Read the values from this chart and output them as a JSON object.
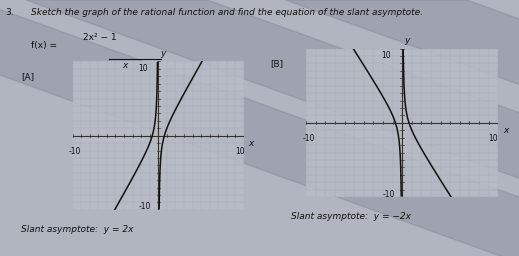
{
  "title_line1": "Sketch the graph of the rational function and find the equation of the slant asymptote.",
  "problem_num": "3.",
  "func_text": "f(x) =",
  "func_num": "2x² − 1",
  "func_den": "x",
  "panel_A_label": "[A]",
  "panel_B_label": "[B]",
  "slant_A": "Slant asymptote:  y = 2x",
  "slant_B": "Slant asymptote:  y = −2x",
  "xlim": [
    -10,
    10
  ],
  "ylim": [
    -10,
    10
  ],
  "dot_color": "#777777",
  "axis_color": "#333333",
  "curve_color": "#111111",
  "plot_bg": "#b8bdc8",
  "page_bg": "#b0b5c0",
  "shadow_color": "#6a7080",
  "text_color": "#111111",
  "tick_fontsize": 5.5,
  "label_fontsize": 6.5,
  "title_fontsize": 6.5
}
